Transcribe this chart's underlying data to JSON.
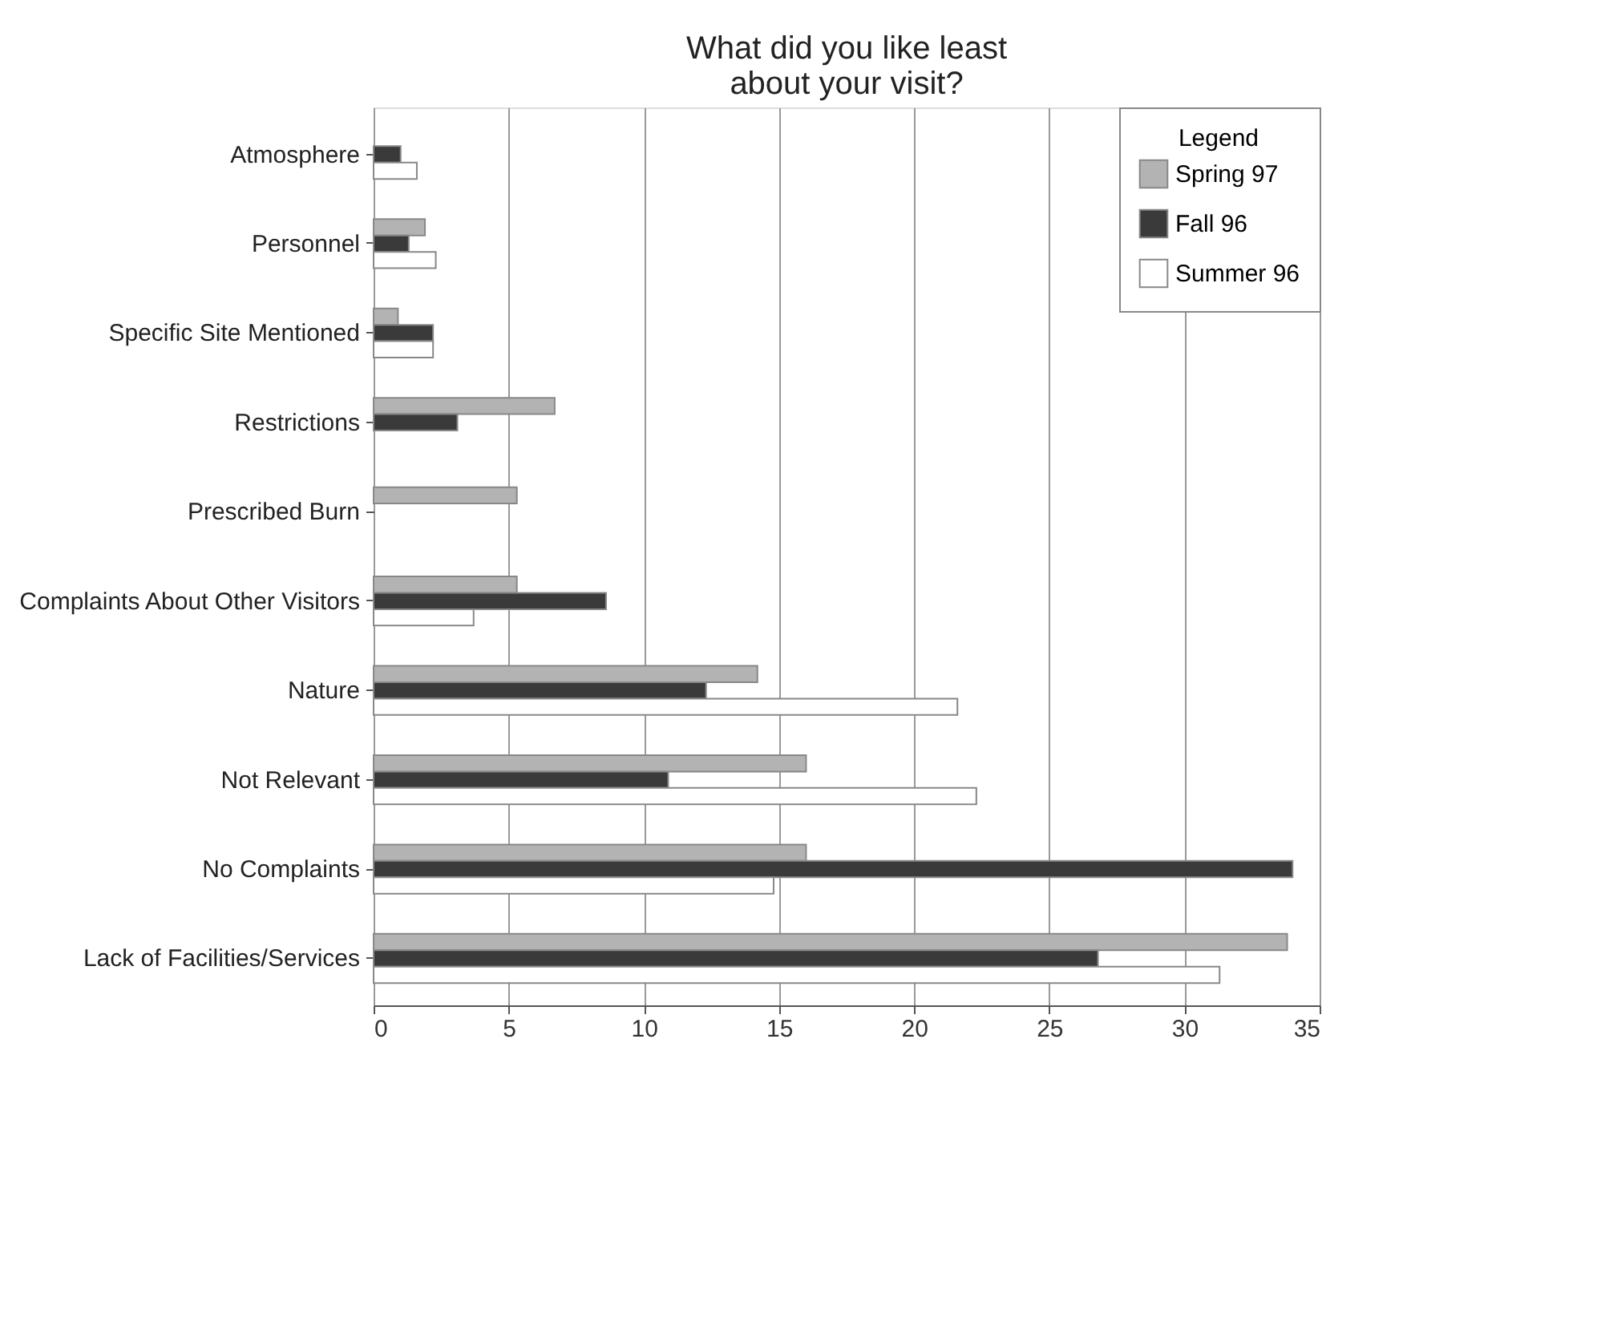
{
  "chart_data": {
    "type": "bar",
    "orientation": "horizontal",
    "title": "What did you like least\nabout your visit?",
    "legend_title": "Legend",
    "categories": [
      "Atmosphere",
      "Personnel",
      "Specific Site Mentioned",
      "Restrictions",
      "Prescribed Burn",
      "Complaints About Other Visitors",
      "Nature",
      "Not Relevant",
      "No Complaints",
      "Lack of Facilities/Services"
    ],
    "series": [
      {
        "name": "Spring 97",
        "color": "#b3b3b3",
        "values": [
          null,
          1.9,
          0.9,
          6.7,
          5.3,
          5.3,
          14.2,
          16.0,
          16.0,
          33.8
        ]
      },
      {
        "name": "Fall 96",
        "color": "#3a3a3a",
        "values": [
          1.0,
          1.3,
          2.2,
          3.1,
          null,
          8.6,
          12.3,
          10.9,
          34.0,
          26.8
        ]
      },
      {
        "name": "Summer 96",
        "color": "#ffffff",
        "values": [
          1.6,
          2.3,
          2.2,
          null,
          null,
          3.7,
          21.6,
          22.3,
          14.8,
          31.3
        ]
      }
    ],
    "xlim": [
      0,
      35
    ],
    "xticks": [
      0,
      5,
      10,
      15,
      20,
      25,
      30,
      35
    ],
    "grid": "x",
    "legend": "top right"
  }
}
